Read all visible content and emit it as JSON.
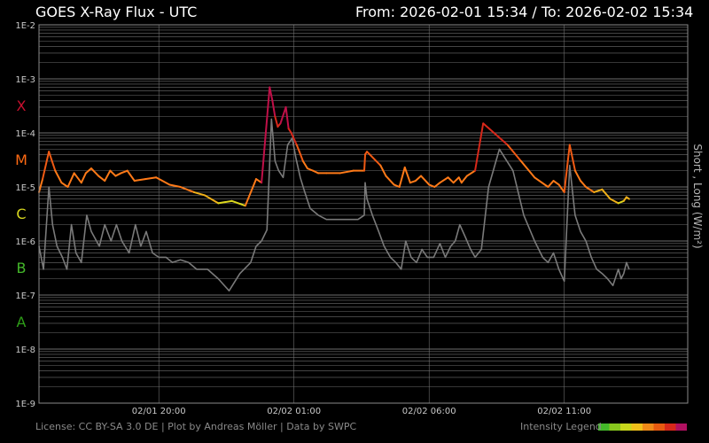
{
  "header": {
    "title": "GOES X-Ray Flux - UTC",
    "range": "From: 2026-02-01 15:34  /  To: 2026-02-02 15:34"
  },
  "footer": {
    "license": "License: CC BY-SA 3.0 DE | Plot by Andreas Möller | Data by SWPC",
    "legend_label": "Intensity Legend"
  },
  "colors": {
    "background": "#000000",
    "grid": "#6e6e6e",
    "axis_text": "#c8c8c8",
    "long_base": "#ff7a18",
    "short_series": "#7a7a7a",
    "class_X": "#c8102e",
    "class_M": "#ff6a13",
    "class_C": "#d6d61e",
    "class_B": "#44b82a",
    "class_A": "#2e9e18",
    "intensity_scale": [
      "#44b82a",
      "#88c81e",
      "#c8d81c",
      "#f0c01a",
      "#f08a18",
      "#e85a10",
      "#d8281a",
      "#b01060"
    ]
  },
  "chart_data": {
    "type": "line",
    "title": "GOES X-Ray Flux - UTC",
    "xlabel": "",
    "ylabel": "Short , Long (W/m²)",
    "yscale": "log",
    "ylim": [
      1e-09,
      0.01
    ],
    "xlim": [
      "2026-02-01 15:34",
      "2026-02-02 15:34"
    ],
    "grid": true,
    "y_tick_labels": [
      "1E-9",
      "1E-8",
      "1E-7",
      "1E-6",
      "1E-5",
      "1E-4",
      "1E-3",
      "1E-2"
    ],
    "x_tick_labels": [
      "02/01 20:00",
      "02/02 01:00",
      "02/02 06:00",
      "02/02 11:00"
    ],
    "x_ticks": [
      "2026-02-01 20:00",
      "2026-02-02 01:00",
      "2026-02-02 06:00",
      "2026-02-02 11:00"
    ],
    "flare_classes": [
      {
        "label": "X",
        "y": 0.00032
      },
      {
        "label": "M",
        "y": 3.2e-05
      },
      {
        "label": "C",
        "y": 3.2e-06
      },
      {
        "label": "B",
        "y": 3.2e-07
      },
      {
        "label": "A",
        "y": 3.2e-08
      }
    ],
    "series": [
      {
        "name": "Long",
        "x": [
          "2026-02-01 15:34",
          "2026-02-01 15:42",
          "2026-02-01 15:56",
          "2026-02-01 16:10",
          "2026-02-01 16:24",
          "2026-02-01 16:38",
          "2026-02-01 16:52",
          "2026-02-01 17:08",
          "2026-02-01 17:18",
          "2026-02-01 17:30",
          "2026-02-01 17:46",
          "2026-02-01 18:00",
          "2026-02-01 18:12",
          "2026-02-01 18:24",
          "2026-02-01 18:36",
          "2026-02-01 18:50",
          "2026-02-01 19:06",
          "2026-02-01 19:30",
          "2026-02-01 19:54",
          "2026-02-01 20:24",
          "2026-02-01 20:48",
          "2026-02-01 21:18",
          "2026-02-01 21:42",
          "2026-02-01 22:12",
          "2026-02-01 22:42",
          "2026-02-01 23:12",
          "2026-02-01 23:36",
          "2026-02-01 23:48",
          "2026-02-02 00:06",
          "2026-02-02 00:12",
          "2026-02-02 00:18",
          "2026-02-02 00:24",
          "2026-02-02 00:30",
          "2026-02-02 00:42",
          "2026-02-02 00:48",
          "2026-02-02 00:54",
          "2026-02-02 01:06",
          "2026-02-02 01:12",
          "2026-02-02 01:20",
          "2026-02-02 01:30",
          "2026-02-02 01:42",
          "2026-02-02 01:54",
          "2026-02-02 02:12",
          "2026-02-02 02:42",
          "2026-02-02 03:12",
          "2026-02-02 03:36",
          "2026-02-02 03:38",
          "2026-02-02 03:42",
          "2026-02-02 04:12",
          "2026-02-02 04:24",
          "2026-02-02 04:42",
          "2026-02-02 04:54",
          "2026-02-02 05:06",
          "2026-02-02 05:18",
          "2026-02-02 05:30",
          "2026-02-02 05:42",
          "2026-02-02 06:00",
          "2026-02-02 06:12",
          "2026-02-02 06:24",
          "2026-02-02 06:42",
          "2026-02-02 06:54",
          "2026-02-02 07:06",
          "2026-02-02 07:12",
          "2026-02-02 07:24",
          "2026-02-02 07:42",
          "2026-02-02 08:00",
          "2026-02-02 08:24",
          "2026-02-02 08:54",
          "2026-02-02 09:24",
          "2026-02-02 09:54",
          "2026-02-02 10:24",
          "2026-02-02 10:36",
          "2026-02-02 10:48",
          "2026-02-02 11:00",
          "2026-02-02 11:12",
          "2026-02-02 11:24",
          "2026-02-02 11:36",
          "2026-02-02 11:48",
          "2026-02-02 12:06",
          "2026-02-02 12:24",
          "2026-02-02 12:42",
          "2026-02-02 13:00",
          "2026-02-02 13:12",
          "2026-02-02 13:18",
          "2026-02-02 13:24"
        ],
        "values": [
          8e-06,
          1.4e-05,
          4.5e-05,
          2e-05,
          1.2e-05,
          1e-05,
          1.8e-05,
          1.2e-05,
          1.8e-05,
          2.2e-05,
          1.6e-05,
          1.3e-05,
          2e-05,
          1.6e-05,
          1.8e-05,
          2e-05,
          1.3e-05,
          1.4e-05,
          1.5e-05,
          1.1e-05,
          1e-05,
          8e-06,
          7e-06,
          5e-06,
          5.5e-06,
          4.5e-06,
          1.4e-05,
          1.2e-05,
          0.0007,
          0.0004,
          0.0002,
          0.00013,
          0.00015,
          0.0003,
          0.00012,
          0.0001,
          6e-05,
          4.5e-05,
          3e-05,
          2.2e-05,
          2e-05,
          1.8e-05,
          1.8e-05,
          1.8e-05,
          2e-05,
          2e-05,
          4e-05,
          4.5e-05,
          2.5e-05,
          1.6e-05,
          1.1e-05,
          1e-05,
          2.3e-05,
          1.2e-05,
          1.3e-05,
          1.6e-05,
          1.1e-05,
          1e-05,
          1.2e-05,
          1.5e-05,
          1.2e-05,
          1.5e-05,
          1.2e-05,
          1.6e-05,
          2e-05,
          0.00015,
          0.0001,
          6e-05,
          3e-05,
          1.5e-05,
          1e-05,
          1.3e-05,
          1.1e-05,
          8e-06,
          6e-05,
          2e-05,
          1.3e-05,
          1e-05,
          8e-06,
          9e-06,
          6e-06,
          5e-06,
          5.5e-06,
          6.5e-06,
          6e-06
        ]
      },
      {
        "name": "Short",
        "x": [
          "2026-02-01 15:34",
          "2026-02-01 15:44",
          "2026-02-01 15:56",
          "2026-02-01 16:04",
          "2026-02-01 16:14",
          "2026-02-01 16:26",
          "2026-02-01 16:36",
          "2026-02-01 16:46",
          "2026-02-01 16:56",
          "2026-02-01 17:08",
          "2026-02-01 17:20",
          "2026-02-01 17:30",
          "2026-02-01 17:48",
          "2026-02-01 18:00",
          "2026-02-01 18:14",
          "2026-02-01 18:26",
          "2026-02-01 18:38",
          "2026-02-01 18:54",
          "2026-02-01 19:08",
          "2026-02-01 19:20",
          "2026-02-01 19:32",
          "2026-02-01 19:46",
          "2026-02-01 20:00",
          "2026-02-01 20:16",
          "2026-02-01 20:30",
          "2026-02-01 20:48",
          "2026-02-01 21:06",
          "2026-02-01 21:24",
          "2026-02-01 21:48",
          "2026-02-01 22:12",
          "2026-02-01 22:36",
          "2026-02-01 23:00",
          "2026-02-01 23:24",
          "2026-02-01 23:36",
          "2026-02-01 23:48",
          "2026-02-02 00:00",
          "2026-02-02 00:10",
          "2026-02-02 00:18",
          "2026-02-02 00:26",
          "2026-02-02 00:36",
          "2026-02-02 00:46",
          "2026-02-02 00:56",
          "2026-02-02 01:04",
          "2026-02-02 01:14",
          "2026-02-02 01:24",
          "2026-02-02 01:36",
          "2026-02-02 01:54",
          "2026-02-02 02:12",
          "2026-02-02 02:42",
          "2026-02-02 03:10",
          "2026-02-02 03:22",
          "2026-02-02 03:36",
          "2026-02-02 03:38",
          "2026-02-02 03:42",
          "2026-02-02 03:54",
          "2026-02-02 04:08",
          "2026-02-02 04:20",
          "2026-02-02 04:34",
          "2026-02-02 04:46",
          "2026-02-02 04:58",
          "2026-02-02 05:08",
          "2026-02-02 05:20",
          "2026-02-02 05:32",
          "2026-02-02 05:44",
          "2026-02-02 05:56",
          "2026-02-02 06:10",
          "2026-02-02 06:24",
          "2026-02-02 06:36",
          "2026-02-02 06:48",
          "2026-02-02 06:58",
          "2026-02-02 07:08",
          "2026-02-02 07:20",
          "2026-02-02 07:32",
          "2026-02-02 07:42",
          "2026-02-02 07:56",
          "2026-02-02 08:12",
          "2026-02-02 08:36",
          "2026-02-02 09:06",
          "2026-02-02 09:30",
          "2026-02-02 09:54",
          "2026-02-02 10:12",
          "2026-02-02 10:24",
          "2026-02-02 10:36",
          "2026-02-02 10:48",
          "2026-02-02 11:00",
          "2026-02-02 11:12",
          "2026-02-02 11:24",
          "2026-02-02 11:36",
          "2026-02-02 11:48",
          "2026-02-02 12:00",
          "2026-02-02 12:12",
          "2026-02-02 12:24",
          "2026-02-02 12:36",
          "2026-02-02 12:48",
          "2026-02-02 13:00",
          "2026-02-02 13:06",
          "2026-02-02 13:12",
          "2026-02-02 13:18",
          "2026-02-02 13:24"
        ],
        "values": [
          8e-07,
          3e-07,
          1e-05,
          2e-06,
          8e-07,
          5e-07,
          3e-07,
          2e-06,
          6e-07,
          4e-07,
          3e-06,
          1.5e-06,
          8e-07,
          2e-06,
          1e-06,
          2e-06,
          1e-06,
          6e-07,
          2e-06,
          8e-07,
          1.5e-06,
          6e-07,
          5e-07,
          5e-07,
          4e-07,
          4.5e-07,
          4e-07,
          3e-07,
          3e-07,
          2e-07,
          1.2e-07,
          2.5e-07,
          4e-07,
          8e-07,
          1e-06,
          1.6e-06,
          0.00018,
          3e-05,
          2e-05,
          1.5e-05,
          6e-05,
          8e-05,
          3.5e-05,
          1.5e-05,
          8e-06,
          4e-06,
          3e-06,
          2.5e-06,
          2.5e-06,
          2.5e-06,
          2.5e-06,
          3e-06,
          1.2e-05,
          6e-06,
          3e-06,
          1.5e-06,
          8e-07,
          5e-07,
          4e-07,
          3e-07,
          1e-06,
          5e-07,
          4e-07,
          7e-07,
          5e-07,
          5e-07,
          9e-07,
          5e-07,
          8e-07,
          1e-06,
          2e-06,
          1.2e-06,
          7e-07,
          5e-07,
          7e-07,
          1e-05,
          5e-05,
          2e-05,
          3e-06,
          1e-06,
          5e-07,
          4e-07,
          6e-07,
          3e-07,
          1.8e-07,
          2.5e-05,
          3e-06,
          1.5e-06,
          1e-06,
          5e-07,
          3e-07,
          2.5e-07,
          2e-07,
          1.5e-07,
          3e-07,
          2e-07,
          2.5e-07,
          4e-07,
          3e-07
        ]
      }
    ]
  }
}
